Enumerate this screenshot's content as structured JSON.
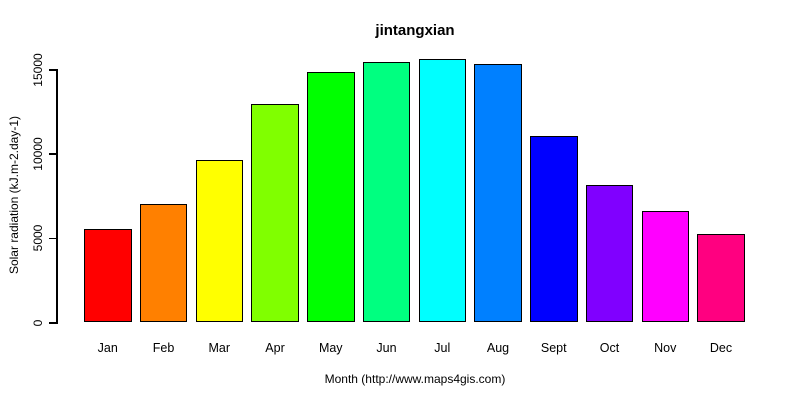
{
  "chart_data": {
    "type": "bar",
    "title": "jintangxian",
    "xlabel": "Month (http://www.maps4gis.com)",
    "ylabel": "Solar radiation (kJ.m-2.day-1)",
    "categories": [
      "Jan",
      "Feb",
      "Mar",
      "Apr",
      "May",
      "Jun",
      "Jul",
      "Aug",
      "Sept",
      "Oct",
      "Nov",
      "Dec"
    ],
    "values": [
      5500,
      7000,
      9600,
      12900,
      14800,
      15400,
      15600,
      15300,
      11000,
      8100,
      6600,
      5200
    ],
    "bar_colors": [
      "#FF0000",
      "#FF8000",
      "#FFFF00",
      "#80FF00",
      "#00FF00",
      "#00FF80",
      "#00FFFF",
      "#0080FF",
      "#0000FF",
      "#8000FF",
      "#FF00FF",
      "#FF0080"
    ],
    "bar_border_color": "#000000",
    "axis_color": "#000000",
    "ylim": [
      0,
      15000
    ],
    "yticks": [
      0,
      5000,
      10000,
      15000
    ],
    "grid": false,
    "legend_position": "none",
    "background_color": "#FFFFFF"
  }
}
